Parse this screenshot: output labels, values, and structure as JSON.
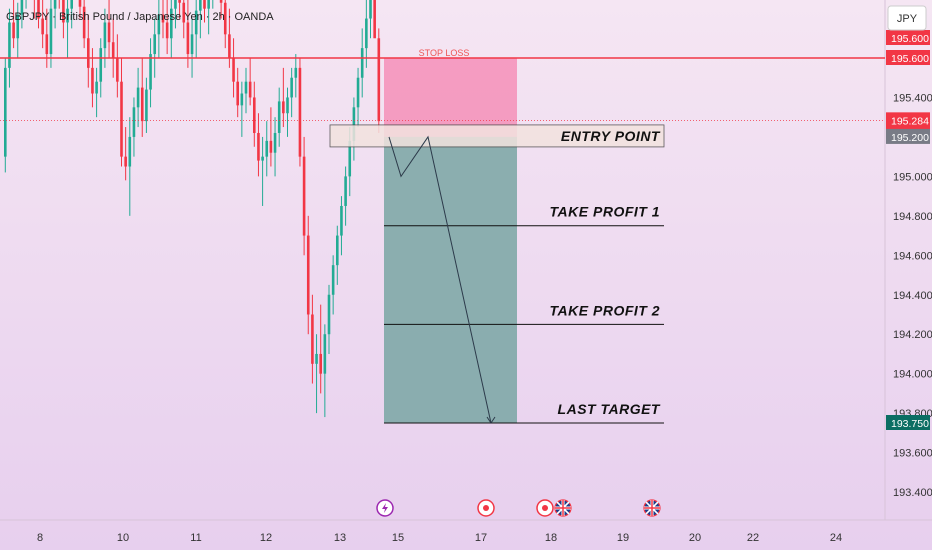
{
  "header": {
    "symbol_title": "GBPJPY · British Pound / Japanese Yen · 2h · OANDA",
    "currency_button": "JPY"
  },
  "colors": {
    "bg_top": "#f5e6f3",
    "bg_bottom": "#e7cfee",
    "up": "#22ab94",
    "down": "#f23645",
    "stop_zone": "#f48fb8",
    "target_zone": "#7fa9a7",
    "stop_line": "#f23645",
    "entry_box": "#f2e3df"
  },
  "chart_data": {
    "type": "line",
    "title": "GBPJPY · British Pound / Japanese Yen · 2h · OANDA",
    "xlabel": "",
    "ylabel": "",
    "x_ticks": [
      "8",
      "10",
      "11",
      "12",
      "13",
      "15",
      "17",
      "18",
      "19",
      "20",
      "22",
      "24"
    ],
    "y_ticks": [
      "195.400",
      "195.000",
      "194.800",
      "194.600",
      "194.400",
      "194.200",
      "194.000",
      "193.800",
      "193.600",
      "193.400"
    ],
    "ylim": [
      193.33,
      196.22
    ],
    "price_tags": [
      {
        "label": "195.600",
        "value": 195.6,
        "style": "red"
      },
      {
        "label": "195.600",
        "value": 195.6,
        "style": "red"
      },
      {
        "label": "195.284",
        "value": 195.284,
        "style": "red"
      },
      {
        "label": "06:25",
        "value": 195.284,
        "style": "red-sub"
      },
      {
        "label": "195.200",
        "value": 195.2,
        "style": "gray"
      },
      {
        "label": "193.750",
        "value": 193.75,
        "style": "green"
      }
    ],
    "levels": {
      "stop_loss": 195.6,
      "entry": 195.2,
      "take_profit_1": 194.75,
      "take_profit_2": 194.25,
      "last_target": 193.75,
      "current_price": 195.284
    },
    "annotations": {
      "stop_loss": "STOP LOSS",
      "entry": "ENTRY POINT",
      "tp1": "TAKE PROFIT 1",
      "tp2": "TAKE PROFIT 2",
      "last": "LAST TARGET"
    },
    "projected_path": [
      195.2,
      195.0,
      195.2,
      193.75
    ],
    "events": [
      "lightning",
      "dot",
      "dot",
      "uk-flag",
      "uk-flag"
    ],
    "series": [
      {
        "values": [
          [
            195.1,
            195.6,
            195.02,
            195.55
          ],
          [
            195.55,
            195.85,
            195.45,
            195.78
          ],
          [
            195.78,
            195.95,
            195.65,
            195.7
          ],
          [
            195.7,
            195.88,
            195.6,
            195.82
          ],
          [
            195.82,
            196.05,
            195.75,
            195.95
          ],
          [
            195.95,
            196.15,
            195.85,
            196.05
          ],
          [
            196.05,
            196.2,
            195.9,
            195.95
          ],
          [
            195.95,
            196.1,
            195.8,
            195.9
          ],
          [
            195.9,
            196.05,
            195.75,
            195.8
          ],
          [
            195.8,
            195.95,
            195.65,
            195.72
          ],
          [
            195.72,
            195.85,
            195.55,
            195.62
          ],
          [
            195.62,
            195.9,
            195.55,
            195.85
          ],
          [
            195.85,
            196.1,
            195.75,
            196.0
          ],
          [
            196.0,
            196.15,
            195.85,
            195.9
          ],
          [
            195.9,
            196.05,
            195.7,
            195.78
          ],
          [
            195.78,
            195.95,
            195.6,
            195.85
          ],
          [
            195.85,
            196.1,
            195.75,
            196.02
          ],
          [
            196.02,
            196.18,
            195.9,
            195.98
          ],
          [
            195.98,
            196.12,
            195.8,
            195.86
          ],
          [
            195.86,
            195.98,
            195.65,
            195.7
          ],
          [
            195.7,
            195.82,
            195.45,
            195.55
          ],
          [
            195.55,
            195.65,
            195.35,
            195.42
          ],
          [
            195.42,
            195.55,
            195.3,
            195.48
          ],
          [
            195.48,
            195.7,
            195.4,
            195.65
          ],
          [
            195.65,
            195.85,
            195.55,
            195.78
          ],
          [
            195.78,
            195.92,
            195.6,
            195.68
          ],
          [
            195.68,
            195.8,
            195.5,
            195.6
          ],
          [
            195.6,
            195.72,
            195.4,
            195.48
          ],
          [
            195.48,
            195.6,
            195.05,
            195.1
          ],
          [
            195.1,
            195.25,
            194.98,
            195.05
          ],
          [
            195.05,
            195.3,
            194.8,
            195.2
          ],
          [
            195.2,
            195.4,
            195.1,
            195.35
          ],
          [
            195.35,
            195.55,
            195.25,
            195.45
          ],
          [
            195.45,
            195.6,
            195.2,
            195.28
          ],
          [
            195.28,
            195.5,
            195.22,
            195.44
          ],
          [
            195.44,
            195.7,
            195.35,
            195.62
          ],
          [
            195.62,
            195.8,
            195.5,
            195.72
          ],
          [
            195.72,
            195.9,
            195.6,
            195.82
          ],
          [
            195.82,
            195.95,
            195.7,
            195.78
          ],
          [
            195.78,
            195.92,
            195.62,
            195.7
          ],
          [
            195.7,
            195.9,
            195.6,
            195.85
          ],
          [
            195.85,
            196.05,
            195.75,
            195.95
          ],
          [
            195.95,
            196.1,
            195.8,
            195.88
          ],
          [
            195.88,
            196.0,
            195.7,
            195.78
          ],
          [
            195.78,
            195.9,
            195.55,
            195.62
          ],
          [
            195.62,
            195.8,
            195.5,
            195.72
          ],
          [
            195.72,
            195.9,
            195.6,
            195.84
          ],
          [
            195.84,
            196.0,
            195.7,
            195.92
          ],
          [
            195.92,
            196.05,
            195.78,
            195.85
          ],
          [
            195.85,
            196.0,
            195.72,
            195.95
          ],
          [
            195.95,
            196.15,
            195.85,
            196.08
          ],
          [
            196.08,
            196.2,
            195.95,
            196.0
          ],
          [
            196.0,
            196.1,
            195.8,
            195.88
          ],
          [
            195.88,
            195.98,
            195.65,
            195.72
          ],
          [
            195.72,
            195.85,
            195.55,
            195.6
          ],
          [
            195.6,
            195.7,
            195.4,
            195.48
          ],
          [
            195.48,
            195.55,
            195.3,
            195.36
          ],
          [
            195.36,
            195.48,
            195.2,
            195.42
          ],
          [
            195.42,
            195.55,
            195.32,
            195.48
          ],
          [
            195.48,
            195.6,
            195.36,
            195.4
          ],
          [
            195.4,
            195.48,
            195.15,
            195.22
          ],
          [
            195.22,
            195.32,
            195.0,
            195.08
          ],
          [
            195.08,
            195.2,
            194.85,
            195.1
          ],
          [
            195.1,
            195.28,
            195.0,
            195.18
          ],
          [
            195.18,
            195.35,
            195.05,
            195.12
          ],
          [
            195.12,
            195.3,
            195.0,
            195.22
          ],
          [
            195.22,
            195.45,
            195.15,
            195.38
          ],
          [
            195.38,
            195.55,
            195.25,
            195.32
          ],
          [
            195.32,
            195.45,
            195.2,
            195.4
          ],
          [
            195.4,
            195.55,
            195.3,
            195.5
          ],
          [
            195.5,
            195.62,
            195.4,
            195.55
          ],
          [
            195.55,
            195.6,
            195.05,
            195.1
          ],
          [
            195.1,
            195.2,
            194.6,
            194.7
          ],
          [
            194.7,
            194.8,
            194.2,
            194.3
          ],
          [
            194.3,
            194.4,
            193.95,
            194.05
          ],
          [
            194.05,
            194.2,
            193.8,
            194.1
          ],
          [
            194.1,
            194.35,
            193.9,
            194.0
          ],
          [
            194.0,
            194.25,
            193.78,
            194.2
          ],
          [
            194.2,
            194.45,
            194.1,
            194.4
          ],
          [
            194.4,
            194.6,
            194.3,
            194.55
          ],
          [
            194.55,
            194.75,
            194.45,
            194.7
          ],
          [
            194.7,
            194.9,
            194.6,
            194.85
          ],
          [
            194.85,
            195.05,
            194.75,
            195.0
          ],
          [
            195.0,
            195.25,
            194.9,
            195.18
          ],
          [
            195.18,
            195.4,
            195.08,
            195.35
          ],
          [
            195.35,
            195.55,
            195.25,
            195.5
          ],
          [
            195.5,
            195.75,
            195.4,
            195.65
          ],
          [
            195.65,
            195.9,
            195.55,
            195.8
          ],
          [
            195.8,
            196.1,
            195.7,
            196.0
          ],
          [
            196.0,
            196.2,
            195.8,
            195.7
          ],
          [
            195.7,
            195.75,
            195.22,
            195.28
          ]
        ]
      }
    ]
  }
}
